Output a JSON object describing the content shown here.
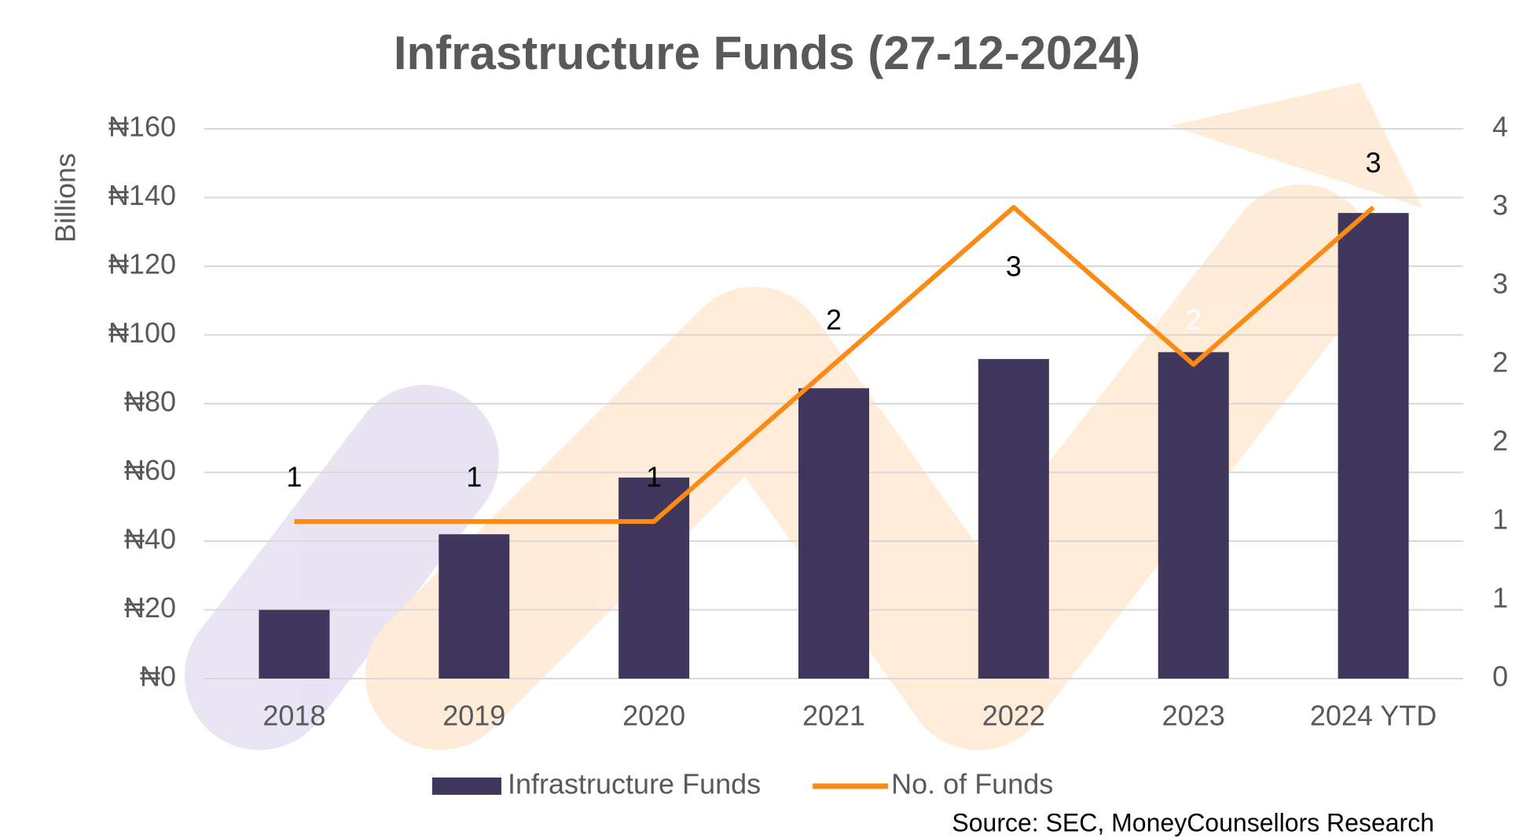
{
  "chart_data": {
    "type": "bar",
    "title": "Infrastructure Funds (27-12-2024)",
    "y_label": "Billions",
    "categories": [
      "2018",
      "2019",
      "2020",
      "2021",
      "2022",
      "2023",
      "2024 YTD"
    ],
    "series": [
      {
        "name": "Infrastructure Funds",
        "type": "bar",
        "color": "#3f385c",
        "values": [
          20,
          42,
          58.5,
          84.5,
          93,
          95,
          135.5
        ]
      },
      {
        "name": "No. of Funds",
        "type": "line",
        "axis": "y2",
        "color": "#fd8a14",
        "values": [
          1,
          1,
          1,
          2,
          3,
          2,
          3
        ]
      }
    ],
    "ylim": [
      0,
      160
    ],
    "yticks": [
      {
        "value": 0,
        "label": "₦0"
      },
      {
        "value": 20,
        "label": "₦20"
      },
      {
        "value": 40,
        "label": "₦40"
      },
      {
        "value": 60,
        "label": "₦60"
      },
      {
        "value": 80,
        "label": "₦80"
      },
      {
        "value": 100,
        "label": "₦100"
      },
      {
        "value": 120,
        "label": "₦120"
      },
      {
        "value": 140,
        "label": "₦140"
      },
      {
        "value": 160,
        "label": "₦160"
      }
    ],
    "y2lim": [
      0,
      3.5
    ],
    "y2ticks": [
      0,
      {
        "value": 0.5,
        "label": "1"
      },
      1,
      {
        "value": 1.5,
        "label": "2"
      },
      2,
      {
        "value": 2.5,
        "label": "3"
      },
      3,
      {
        "value": 3.5,
        "label": "4"
      }
    ],
    "grid": true,
    "legend": "bottom",
    "source": "Source: SEC, MoneyCounsellors Research"
  }
}
